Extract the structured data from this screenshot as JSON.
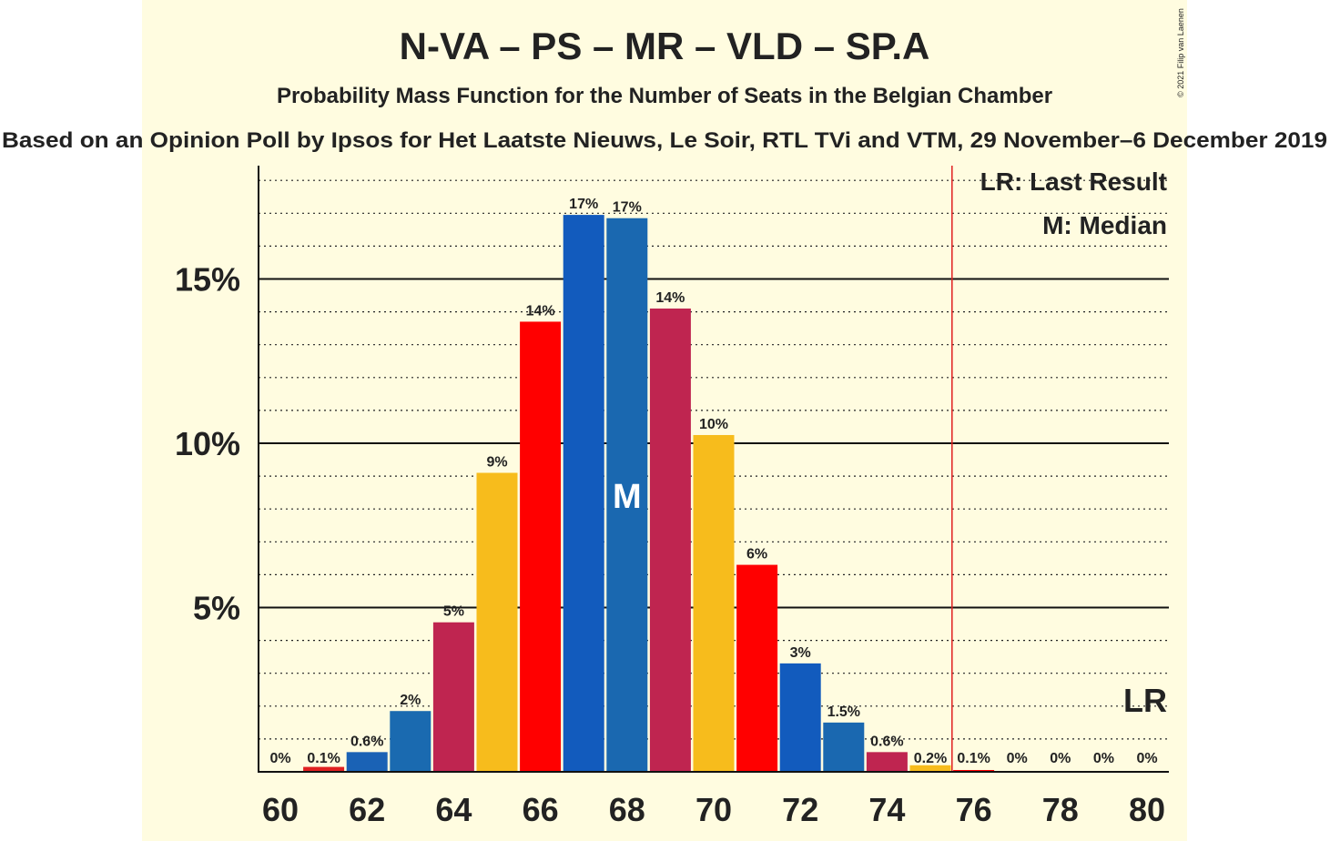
{
  "chart_data": {
    "type": "bar",
    "title": "N-VA – PS – MR – VLD – SP.A",
    "subtitle": "Probability Mass Function for the Number of Seats in the Belgian Chamber",
    "source_line": "Based on an Opinion Poll by Ipsos for Het Laatste Nieuws, Le Soir, RTL TVi and VTM, 29 November–6 December 2019",
    "copyright": "© 2021 Filip van Laenen",
    "legend": [
      "LR: Last Result",
      "M: Median"
    ],
    "xlabel": "",
    "ylabel": "",
    "ylim": [
      0,
      18.5
    ],
    "y_major_ticks": [
      5,
      10,
      15
    ],
    "y_tick_labels": [
      "5%",
      "10%",
      "15%"
    ],
    "y_minor_step": 1,
    "x_tick_labels": [
      "60",
      "62",
      "64",
      "66",
      "68",
      "70",
      "72",
      "74",
      "76",
      "78",
      "80"
    ],
    "categories": [
      60,
      61,
      62,
      63,
      64,
      65,
      66,
      67,
      68,
      69,
      70,
      71,
      72,
      73,
      74,
      75,
      76,
      77,
      78,
      79,
      80
    ],
    "values": [
      0,
      0.15,
      0.6,
      1.85,
      4.55,
      9.1,
      13.7,
      16.95,
      16.85,
      14.1,
      10.25,
      6.3,
      3.3,
      1.5,
      0.6,
      0.2,
      0.05,
      0,
      0,
      0,
      0
    ],
    "data_labels": [
      "0%",
      "0.1%",
      "0.6%",
      "2%",
      "5%",
      "9%",
      "14%",
      "17%",
      "17%",
      "14%",
      "10%",
      "6%",
      "3%",
      "1.5%",
      "0.6%",
      "0.2%",
      "0.1%",
      "0%",
      "0%",
      "0%",
      "0%"
    ],
    "bar_colors": [
      "#1F5FB3",
      "#E02020",
      "#1A62B5",
      "#1A6AB0",
      "#BF2550",
      "#F7BC1C",
      "#FF0000",
      "#125BBD",
      "#1A68B0",
      "#BF2550",
      "#F7BC1C",
      "#FF0000",
      "#125BBD",
      "#1A68B0",
      "#BF2550",
      "#F7BC1C",
      "#FF0000",
      "#125BBD",
      "#1A68B0",
      "#BF2550",
      "#F7BC1C"
    ],
    "median_seat": 68,
    "median_marker": "M",
    "last_result_seat": 80,
    "last_result_marker": "LR",
    "majority_line_at": 75.5,
    "majority_line_color": "#E02020",
    "background_color": "#FFFCE0"
  }
}
